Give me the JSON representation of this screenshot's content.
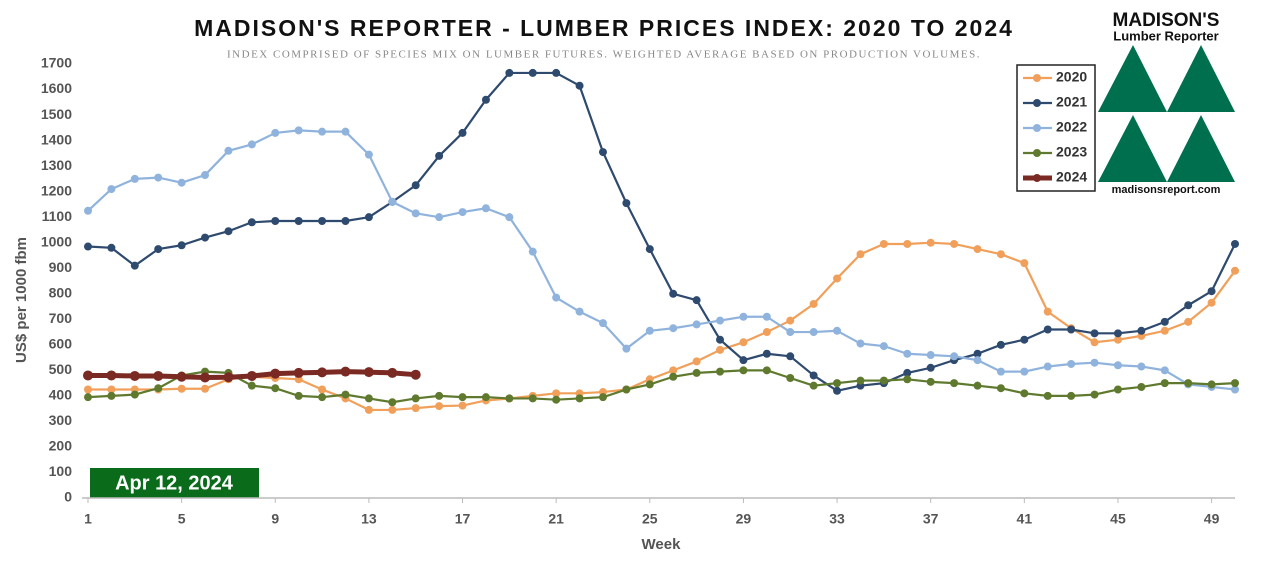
{
  "chart_data": {
    "type": "line",
    "title": "MADISON'S REPORTER - LUMBER PRICES INDEX: 2020 TO 2024",
    "subtitle": "INDEX COMPRISED OF SPECIES MIX ON LUMBER FUTURES. WEIGHTED AVERAGE BASED ON PRODUCTION VOLUMES.",
    "y_label": "US$ per 1000 fbm",
    "x_label": "Week",
    "annotation": "Apr 12, 2024",
    "logo": {
      "name": "MADISON'S",
      "subname": "Lumber Reporter",
      "url": "madisonsreport.com"
    },
    "x": [
      1,
      2,
      3,
      4,
      5,
      6,
      7,
      8,
      9,
      10,
      11,
      12,
      13,
      14,
      15,
      16,
      17,
      18,
      19,
      20,
      21,
      22,
      23,
      24,
      25,
      26,
      27,
      28,
      29,
      30,
      31,
      32,
      33,
      34,
      35,
      36,
      37,
      38,
      39,
      40,
      41,
      42,
      43,
      44,
      45,
      46,
      47,
      48,
      49,
      50
    ],
    "xlim": [
      1,
      50
    ],
    "xticks": [
      1,
      5,
      9,
      13,
      17,
      21,
      25,
      29,
      33,
      37,
      41,
      45,
      49
    ],
    "ylim": [
      0,
      1700
    ],
    "yticks": [
      0,
      100,
      200,
      300,
      400,
      500,
      600,
      700,
      800,
      900,
      1000,
      1100,
      1200,
      1300,
      1400,
      1500,
      1600,
      1700
    ],
    "grid": false,
    "legend": "top-right",
    "series": [
      {
        "name": "2020",
        "color": "#f0a05a",
        "values": [
          425,
          425,
          425,
          425,
          428,
          428,
          465,
          475,
          470,
          465,
          425,
          390,
          345,
          345,
          352,
          360,
          362,
          382,
          390,
          400,
          410,
          410,
          415,
          425,
          465,
          500,
          535,
          580,
          610,
          650,
          695,
          760,
          860,
          955,
          995,
          995,
          1000,
          995,
          975,
          955,
          920,
          730,
          665,
          610,
          620,
          635,
          655,
          690,
          765,
          890
        ]
      },
      {
        "name": "2021",
        "color": "#2e4a6e",
        "values": [
          985,
          980,
          910,
          975,
          990,
          1020,
          1045,
          1080,
          1085,
          1085,
          1085,
          1085,
          1100,
          1160,
          1225,
          1340,
          1430,
          1560,
          1665,
          1665,
          1665,
          1615,
          1355,
          1155,
          975,
          800,
          775,
          620,
          540,
          565,
          555,
          480,
          420,
          440,
          450,
          490,
          510,
          540,
          565,
          600,
          620,
          660,
          660,
          645,
          645,
          655,
          690,
          755,
          810,
          995
        ]
      },
      {
        "name": "2022",
        "color": "#8fb3dd",
        "values": [
          1125,
          1210,
          1250,
          1255,
          1235,
          1265,
          1360,
          1385,
          1430,
          1440,
          1435,
          1435,
          1345,
          1160,
          1115,
          1100,
          1120,
          1135,
          1100,
          965,
          785,
          730,
          685,
          585,
          655,
          665,
          680,
          695,
          710,
          710,
          650,
          650,
          655,
          605,
          595,
          565,
          560,
          555,
          540,
          495,
          495,
          515,
          525,
          530,
          520,
          515,
          500,
          445,
          435,
          425
        ]
      },
      {
        "name": "2023",
        "color": "#5f7a2e",
        "values": [
          395,
          400,
          405,
          430,
          480,
          495,
          490,
          440,
          430,
          400,
          395,
          405,
          390,
          375,
          390,
          400,
          395,
          395,
          390,
          390,
          385,
          390,
          395,
          425,
          445,
          475,
          490,
          495,
          500,
          500,
          470,
          440,
          450,
          460,
          460,
          465,
          455,
          450,
          440,
          430,
          410,
          400,
          400,
          405,
          425,
          435,
          450,
          450,
          445,
          450
        ]
      },
      {
        "name": "2024",
        "color": "#7a2a22",
        "values": [
          480,
          480,
          478,
          478,
          475,
          472,
          473,
          478,
          487,
          490,
          492,
          495,
          493,
          490,
          483,
          null,
          null,
          null,
          null,
          null,
          null,
          null,
          null,
          null,
          null,
          null,
          null,
          null,
          null,
          null,
          null,
          null,
          null,
          null,
          null,
          null,
          null,
          null,
          null,
          null,
          null,
          null,
          null,
          null,
          null,
          null,
          null,
          null,
          null,
          null
        ]
      }
    ]
  }
}
